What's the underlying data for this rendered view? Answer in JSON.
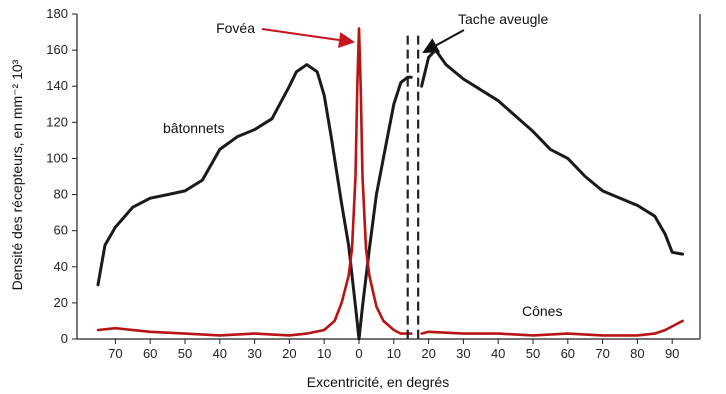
{
  "chart_data": {
    "type": "line",
    "ylabel": "Densité des récepteurs, en mm⁻² 10³",
    "xlabel": "Excentricité, en degrés",
    "x_ticks": [
      "70",
      "60",
      "50",
      "40",
      "30",
      "20",
      "10",
      "0",
      "10",
      "20",
      "30",
      "40",
      "50",
      "60",
      "70",
      "80",
      "90"
    ],
    "ylim": [
      0,
      180
    ],
    "y_ticks": [
      0,
      20,
      40,
      60,
      80,
      100,
      120,
      140,
      160,
      180
    ],
    "grid": false,
    "series": [
      {
        "name": "bâtonnets",
        "color": "#1a1a1a",
        "x": [
          -75,
          -73,
          -70,
          -65,
          -60,
          -55,
          -50,
          -45,
          -40,
          -35,
          -30,
          -25,
          -20,
          -18,
          -15,
          -12,
          -10,
          -8,
          -5,
          -3,
          -1,
          0,
          1,
          3,
          5,
          8,
          10,
          12,
          14,
          15
        ],
        "values": [
          30,
          52,
          62,
          73,
          78,
          80,
          82,
          88,
          105,
          112,
          116,
          122,
          140,
          148,
          152,
          148,
          135,
          112,
          75,
          52,
          18,
          0,
          18,
          50,
          80,
          110,
          130,
          142,
          145,
          145
        ]
      },
      {
        "name": "bâtonnets",
        "color": "#1a1a1a",
        "x": [
          18,
          20,
          22,
          25,
          30,
          40,
          50,
          55,
          60,
          65,
          70,
          80,
          85,
          88,
          90,
          93
        ],
        "values": [
          140,
          156,
          160,
          152,
          144,
          132,
          115,
          105,
          100,
          90,
          82,
          74,
          68,
          58,
          48,
          47
        ]
      },
      {
        "name": "Cônes",
        "color": "#b81414",
        "x": [
          -75,
          -70,
          -60,
          -50,
          -40,
          -30,
          -20,
          -15,
          -10,
          -7,
          -5,
          -3,
          -2,
          -1,
          -0.5,
          0,
          0.5,
          1,
          2,
          3,
          5,
          7,
          10,
          12,
          14,
          15
        ],
        "values": [
          5,
          6,
          4,
          3,
          2,
          3,
          2,
          3,
          5,
          10,
          20,
          35,
          50,
          90,
          140,
          172,
          140,
          90,
          50,
          35,
          18,
          10,
          5,
          3,
          3,
          3
        ]
      },
      {
        "name": "Cônes",
        "color": "#b81414",
        "x": [
          18,
          20,
          30,
          40,
          50,
          60,
          70,
          80,
          85,
          88,
          90,
          93
        ],
        "values": [
          3,
          4,
          3,
          3,
          2,
          3,
          2,
          2,
          3,
          5,
          7,
          10
        ]
      }
    ],
    "annotations": [
      {
        "text": "Fovéa",
        "x": -20,
        "y": 175
      },
      {
        "text": "Tache aveugle",
        "x": 35,
        "y": 178
      },
      {
        "text": "bâtonnets",
        "x": -48,
        "y": 123
      },
      {
        "text": "Cônes",
        "x": 62,
        "y": 13
      }
    ],
    "blind_spot_lines": [
      14,
      17
    ]
  }
}
